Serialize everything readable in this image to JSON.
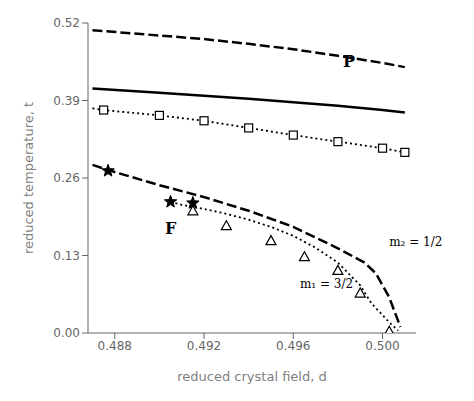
{
  "chart_data": {
    "type": "line",
    "xlabel": "reduced crystal field, d",
    "ylabel": "reduced temperature, t",
    "xlim": [
      0.4868,
      0.5015
    ],
    "ylim": [
      0.0,
      0.52
    ],
    "xticks": [
      0.488,
      0.492,
      0.496,
      {
        "value": 0.5,
        "label": "0.500"
      }
    ],
    "yticks": [
      {
        "value": 0,
        "label": "0.00"
      },
      0.13,
      0.26,
      0.39,
      0.52
    ],
    "grid": false,
    "annotations": [
      {
        "text": "P",
        "x": 0.4985,
        "y": 0.455
      },
      {
        "text": "F",
        "x": 0.4905,
        "y": 0.175
      },
      {
        "text": "m₁ = 3/2",
        "x": 0.4963,
        "y": 0.083
      },
      {
        "text": "m₂ = 1/2",
        "x": 0.5003,
        "y": 0.152
      }
    ],
    "series": [
      {
        "type": "line",
        "line_style": "solid",
        "color": "black",
        "x": [
          0.487,
          0.49,
          0.492,
          0.494,
          0.496,
          0.498,
          0.5,
          0.501
        ],
        "values": [
          0.41,
          0.403,
          0.398,
          0.393,
          0.387,
          0.381,
          0.374,
          0.37
        ]
      },
      {
        "type": "line",
        "line_style": "dashed",
        "color": "black",
        "x": [
          0.487,
          0.49,
          0.492,
          0.494,
          0.496,
          0.498,
          0.5,
          0.501
        ],
        "values": [
          0.508,
          0.499,
          0.493,
          0.485,
          0.476,
          0.465,
          0.453,
          0.446
        ]
      },
      {
        "type": "line",
        "line_style": "dotted",
        "color": "black",
        "x": [
          0.487,
          0.4875,
          0.49,
          0.492,
          0.494,
          0.496,
          0.498,
          0.5,
          0.501
        ],
        "values": [
          0.377,
          0.374,
          0.365,
          0.356,
          0.344,
          0.332,
          0.321,
          0.31,
          0.303
        ]
      },
      {
        "type": "scatter",
        "marker": "square",
        "color": "black",
        "x": [
          0.4875,
          0.49,
          0.492,
          0.494,
          0.496,
          0.498,
          0.5,
          0.501
        ],
        "values": [
          0.374,
          0.365,
          0.356,
          0.344,
          0.332,
          0.321,
          0.31,
          0.303
        ]
      },
      {
        "type": "line",
        "line_style": "dashed",
        "color": "black",
        "x": [
          0.487,
          0.488,
          0.49,
          0.492,
          0.494,
          0.496,
          0.498,
          0.4992,
          0.4997,
          0.5003,
          0.5008
        ],
        "values": [
          0.282,
          0.27,
          0.248,
          0.228,
          0.205,
          0.178,
          0.142,
          0.118,
          0.1,
          0.06,
          0.01
        ]
      },
      {
        "type": "line",
        "line_style": "dotted",
        "color": "black",
        "x": [
          0.4905,
          0.491,
          0.492,
          0.493,
          0.494,
          0.495,
          0.496,
          0.497,
          0.498,
          0.499,
          0.4995,
          0.5003,
          0.5007
        ],
        "values": [
          0.22,
          0.215,
          0.208,
          0.2,
          0.19,
          0.178,
          0.163,
          0.143,
          0.118,
          0.08,
          0.05,
          0.018,
          0.004
        ]
      },
      {
        "type": "scatter",
        "marker": "star",
        "color": "black",
        "x": [
          0.4877,
          0.4905,
          0.4915
        ],
        "values": [
          0.272,
          0.22,
          0.218
        ]
      },
      {
        "type": "scatter",
        "marker": "triangle",
        "color": "black",
        "x": [
          0.4915,
          0.493,
          0.495,
          0.4965,
          0.498,
          0.499,
          0.5003
        ],
        "values": [
          0.205,
          0.18,
          0.155,
          0.128,
          0.105,
          0.067,
          0.003
        ]
      }
    ]
  }
}
